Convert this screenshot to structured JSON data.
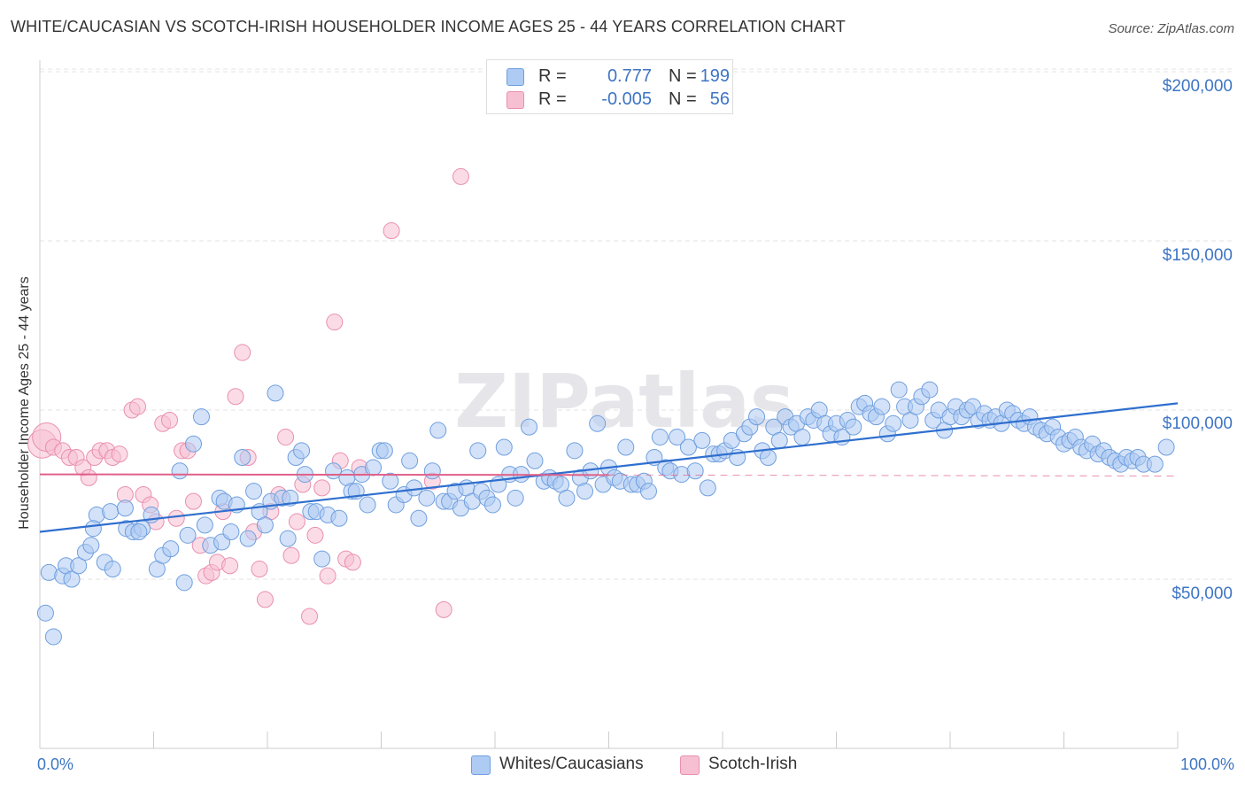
{
  "title": "WHITE/CAUCASIAN VS SCOTCH-IRISH HOUSEHOLDER INCOME AGES 25 - 44 YEARS CORRELATION CHART",
  "source": "Source: ZipAtlas.com",
  "watermark": "ZIPatlas",
  "colors": {
    "blue_fill": "#aecbf3",
    "blue_stroke": "#6f9fdf",
    "blue_line": "#2f6fce",
    "pink_fill": "#f7c0d2",
    "pink_stroke": "#e98fb0",
    "pink_line": "#e0608a",
    "tick_text": "#3e75c4"
  },
  "legend_top": {
    "rows": [
      {
        "r_label": "R =",
        "r_value": "0.777",
        "n_label": "N =",
        "n_value": "199"
      },
      {
        "r_label": "R =",
        "r_value": "-0.005",
        "n_label": "N =",
        "n_value": "56"
      }
    ]
  },
  "legend_bottom": [
    "Whites/Caucasians",
    "Scotch-Irish"
  ],
  "chart_data": {
    "type": "scatter",
    "title": "WHITE/CAUCASIAN VS SCOTCH-IRISH HOUSEHOLDER INCOME AGES 25 - 44 YEARS CORRELATION CHART",
    "xlabel": "",
    "ylabel": "Householder Income Ages 25 - 44 years",
    "xlim": [
      0,
      100
    ],
    "ylim": [
      0,
      205000
    ],
    "x_tick_labels": [
      "0.0%",
      "100.0%"
    ],
    "y_ticks": [
      50000,
      100000,
      150000,
      200000
    ],
    "y_tick_labels": [
      "$50,000",
      "$100,000",
      "$150,000",
      "$200,000"
    ],
    "grid": true,
    "series": [
      {
        "name": "Whites/Caucasians",
        "trend": {
          "x": [
            0,
            100
          ],
          "y": [
            64000,
            102000
          ],
          "style": "solid"
        },
        "points": [
          [
            0.5,
            40000
          ],
          [
            1.2,
            33000
          ],
          [
            0.8,
            52000
          ],
          [
            2,
            51000
          ],
          [
            2.3,
            54000
          ],
          [
            2.8,
            50000
          ],
          [
            3.4,
            54000
          ],
          [
            4,
            58000
          ],
          [
            4.5,
            60000
          ],
          [
            5,
            69000
          ],
          [
            5.7,
            55000
          ],
          [
            6.4,
            53000
          ],
          [
            4.7,
            65000
          ],
          [
            6.2,
            70000
          ],
          [
            7.5,
            71000
          ],
          [
            7.6,
            65000
          ],
          [
            8.2,
            64000
          ],
          [
            9.0,
            65000
          ],
          [
            8.7,
            64000
          ],
          [
            9.8,
            69000
          ],
          [
            10.3,
            53000
          ],
          [
            10.8,
            57000
          ],
          [
            11.5,
            59000
          ],
          [
            12.3,
            82000
          ],
          [
            12.7,
            49000
          ],
          [
            13.0,
            63000
          ],
          [
            13.5,
            90000
          ],
          [
            14.2,
            98000
          ],
          [
            14.5,
            66000
          ],
          [
            15,
            60000
          ],
          [
            15.8,
            74000
          ],
          [
            16,
            61000
          ],
          [
            16.2,
            73000
          ],
          [
            16.8,
            64000
          ],
          [
            17.3,
            72000
          ],
          [
            17.8,
            86000
          ],
          [
            18.3,
            62000
          ],
          [
            18.8,
            76000
          ],
          [
            19.3,
            70000
          ],
          [
            19.8,
            66000
          ],
          [
            20.3,
            73000
          ],
          [
            20.7,
            105000
          ],
          [
            21.3,
            74000
          ],
          [
            22,
            74000
          ],
          [
            21.8,
            62000
          ],
          [
            22.5,
            86000
          ],
          [
            23,
            88000
          ],
          [
            23.3,
            81000
          ],
          [
            23.8,
            70000
          ],
          [
            24.3,
            70000
          ],
          [
            24.8,
            56000
          ],
          [
            25.3,
            69000
          ],
          [
            25.8,
            82000
          ],
          [
            26.3,
            68000
          ],
          [
            27,
            80000
          ],
          [
            27.4,
            76000
          ],
          [
            27.8,
            76000
          ],
          [
            28.3,
            81000
          ],
          [
            28.8,
            72000
          ],
          [
            29.3,
            83000
          ],
          [
            29.9,
            88000
          ],
          [
            30.3,
            88000
          ],
          [
            30.8,
            79000
          ],
          [
            31.3,
            72000
          ],
          [
            32,
            75000
          ],
          [
            32.5,
            85000
          ],
          [
            32.9,
            77000
          ],
          [
            33.3,
            68000
          ],
          [
            34,
            74000
          ],
          [
            34.5,
            82000
          ],
          [
            35.0,
            94000
          ],
          [
            35.5,
            73000
          ],
          [
            36.0,
            73000
          ],
          [
            36.5,
            76000
          ],
          [
            37.0,
            71000
          ],
          [
            37.5,
            77000
          ],
          [
            38.0,
            73000
          ],
          [
            38.5,
            88000
          ],
          [
            38.8,
            76000
          ],
          [
            39.3,
            74000
          ],
          [
            39.8,
            72000
          ],
          [
            40.3,
            78000
          ],
          [
            40.8,
            89000
          ],
          [
            41.3,
            81000
          ],
          [
            41.8,
            74000
          ],
          [
            42.3,
            81000
          ],
          [
            43,
            95000
          ],
          [
            43.5,
            85000
          ],
          [
            44.3,
            79000
          ],
          [
            44.8,
            80000
          ],
          [
            45.3,
            79000
          ],
          [
            45.8,
            78000
          ],
          [
            46.3,
            74000
          ],
          [
            47.0,
            88000
          ],
          [
            47.5,
            80000
          ],
          [
            47.9,
            76000
          ],
          [
            48.4,
            82000
          ],
          [
            49.0,
            96000
          ],
          [
            49.5,
            78000
          ],
          [
            50.0,
            83000
          ],
          [
            50.5,
            80000
          ],
          [
            51.0,
            79000
          ],
          [
            51.5,
            89000
          ],
          [
            52,
            78000
          ],
          [
            52.5,
            78000
          ],
          [
            53.1,
            79000
          ],
          [
            53.5,
            76000
          ],
          [
            54,
            86000
          ],
          [
            54.5,
            92000
          ],
          [
            55,
            83000
          ],
          [
            55.4,
            82000
          ],
          [
            56,
            92000
          ],
          [
            56.4,
            81000
          ],
          [
            57,
            89000
          ],
          [
            57.6,
            82000
          ],
          [
            58.2,
            91000
          ],
          [
            58.7,
            77000
          ],
          [
            59.2,
            87000
          ],
          [
            59.7,
            87000
          ],
          [
            60.2,
            88000
          ],
          [
            60.8,
            91000
          ],
          [
            61.3,
            86000
          ],
          [
            61.9,
            93000
          ],
          [
            62.4,
            95000
          ],
          [
            63,
            98000
          ],
          [
            63.5,
            88000
          ],
          [
            64,
            86000
          ],
          [
            64.5,
            95000
          ],
          [
            65,
            91000
          ],
          [
            65.5,
            98000
          ],
          [
            66,
            95000
          ],
          [
            66.5,
            96000
          ],
          [
            67,
            92000
          ],
          [
            67.5,
            98000
          ],
          [
            68,
            97000
          ],
          [
            68.5,
            100000
          ],
          [
            69,
            96000
          ],
          [
            69.5,
            93000
          ],
          [
            70,
            96000
          ],
          [
            70.5,
            92000
          ],
          [
            71,
            97000
          ],
          [
            71.5,
            95000
          ],
          [
            72,
            101000
          ],
          [
            72.5,
            102000
          ],
          [
            73,
            99000
          ],
          [
            73.5,
            98000
          ],
          [
            74,
            101000
          ],
          [
            74.5,
            93000
          ],
          [
            75,
            96000
          ],
          [
            75.5,
            106000
          ],
          [
            76,
            101000
          ],
          [
            76.5,
            97000
          ],
          [
            77,
            101000
          ],
          [
            77.5,
            104000
          ],
          [
            78.2,
            106000
          ],
          [
            78.5,
            97000
          ],
          [
            79,
            100000
          ],
          [
            79.5,
            94000
          ],
          [
            80,
            98000
          ],
          [
            80.5,
            101000
          ],
          [
            81,
            98000
          ],
          [
            81.5,
            100000
          ],
          [
            82,
            101000
          ],
          [
            82.5,
            97000
          ],
          [
            83,
            99000
          ],
          [
            83.5,
            97000
          ],
          [
            84,
            98000
          ],
          [
            84.5,
            96000
          ],
          [
            85,
            100000
          ],
          [
            85.5,
            99000
          ],
          [
            86,
            97000
          ],
          [
            86.5,
            96000
          ],
          [
            87,
            98000
          ],
          [
            87.5,
            95000
          ],
          [
            88,
            94000
          ],
          [
            88.5,
            93000
          ],
          [
            89,
            95000
          ],
          [
            89.5,
            92000
          ],
          [
            90,
            90000
          ],
          [
            90.5,
            91000
          ],
          [
            91,
            92000
          ],
          [
            91.5,
            89000
          ],
          [
            92,
            88000
          ],
          [
            92.5,
            90000
          ],
          [
            93,
            87000
          ],
          [
            93.5,
            88000
          ],
          [
            94,
            86000
          ],
          [
            94.5,
            85000
          ],
          [
            95,
            84000
          ],
          [
            95.5,
            86000
          ],
          [
            96,
            85000
          ],
          [
            96.5,
            86000
          ],
          [
            97,
            84000
          ],
          [
            98,
            84000
          ],
          [
            99,
            89000
          ]
        ]
      },
      {
        "name": "Scotch-Irish",
        "trend": {
          "x": [
            0,
            50,
            100
          ],
          "y": [
            81000,
            80800,
            80500
          ],
          "style": "solid-then-dashed"
        },
        "points": [
          [
            0.2,
            90000
          ],
          [
            0.6,
            92000
          ],
          [
            1.2,
            89000
          ],
          [
            2,
            88000
          ],
          [
            2.6,
            86000
          ],
          [
            3.2,
            86000
          ],
          [
            3.8,
            83000
          ],
          [
            4.3,
            80000
          ],
          [
            4.8,
            86000
          ],
          [
            5.3,
            88000
          ],
          [
            5.9,
            88000
          ],
          [
            6.4,
            86000
          ],
          [
            7.0,
            87000
          ],
          [
            7.5,
            75000
          ],
          [
            8.1,
            100000
          ],
          [
            8.6,
            101000
          ],
          [
            9.1,
            75000
          ],
          [
            9.7,
            72000
          ],
          [
            10.2,
            67000
          ],
          [
            10.8,
            96000
          ],
          [
            11.4,
            97000
          ],
          [
            12.0,
            68000
          ],
          [
            12.5,
            88000
          ],
          [
            13.0,
            88000
          ],
          [
            13.5,
            73000
          ],
          [
            14.1,
            60000
          ],
          [
            14.6,
            51000
          ],
          [
            15.1,
            52000
          ],
          [
            15.6,
            55000
          ],
          [
            16.1,
            70000
          ],
          [
            16.7,
            54000
          ],
          [
            17.2,
            104000
          ],
          [
            17.8,
            117000
          ],
          [
            18.3,
            86000
          ],
          [
            18.8,
            64000
          ],
          [
            19.3,
            53000
          ],
          [
            19.8,
            44000
          ],
          [
            20.3,
            70000
          ],
          [
            21.0,
            75000
          ],
          [
            21.6,
            92000
          ],
          [
            22.1,
            57000
          ],
          [
            22.6,
            67000
          ],
          [
            23.1,
            78000
          ],
          [
            23.7,
            39000
          ],
          [
            24.2,
            63000
          ],
          [
            24.8,
            77000
          ],
          [
            25.3,
            51000
          ],
          [
            25.9,
            126000
          ],
          [
            26.4,
            85000
          ],
          [
            26.9,
            56000
          ],
          [
            27.5,
            55000
          ],
          [
            28.1,
            83000
          ],
          [
            30.9,
            153000
          ],
          [
            34.5,
            79000
          ],
          [
            35.5,
            41000
          ],
          [
            37.0,
            169000
          ]
        ]
      }
    ]
  }
}
